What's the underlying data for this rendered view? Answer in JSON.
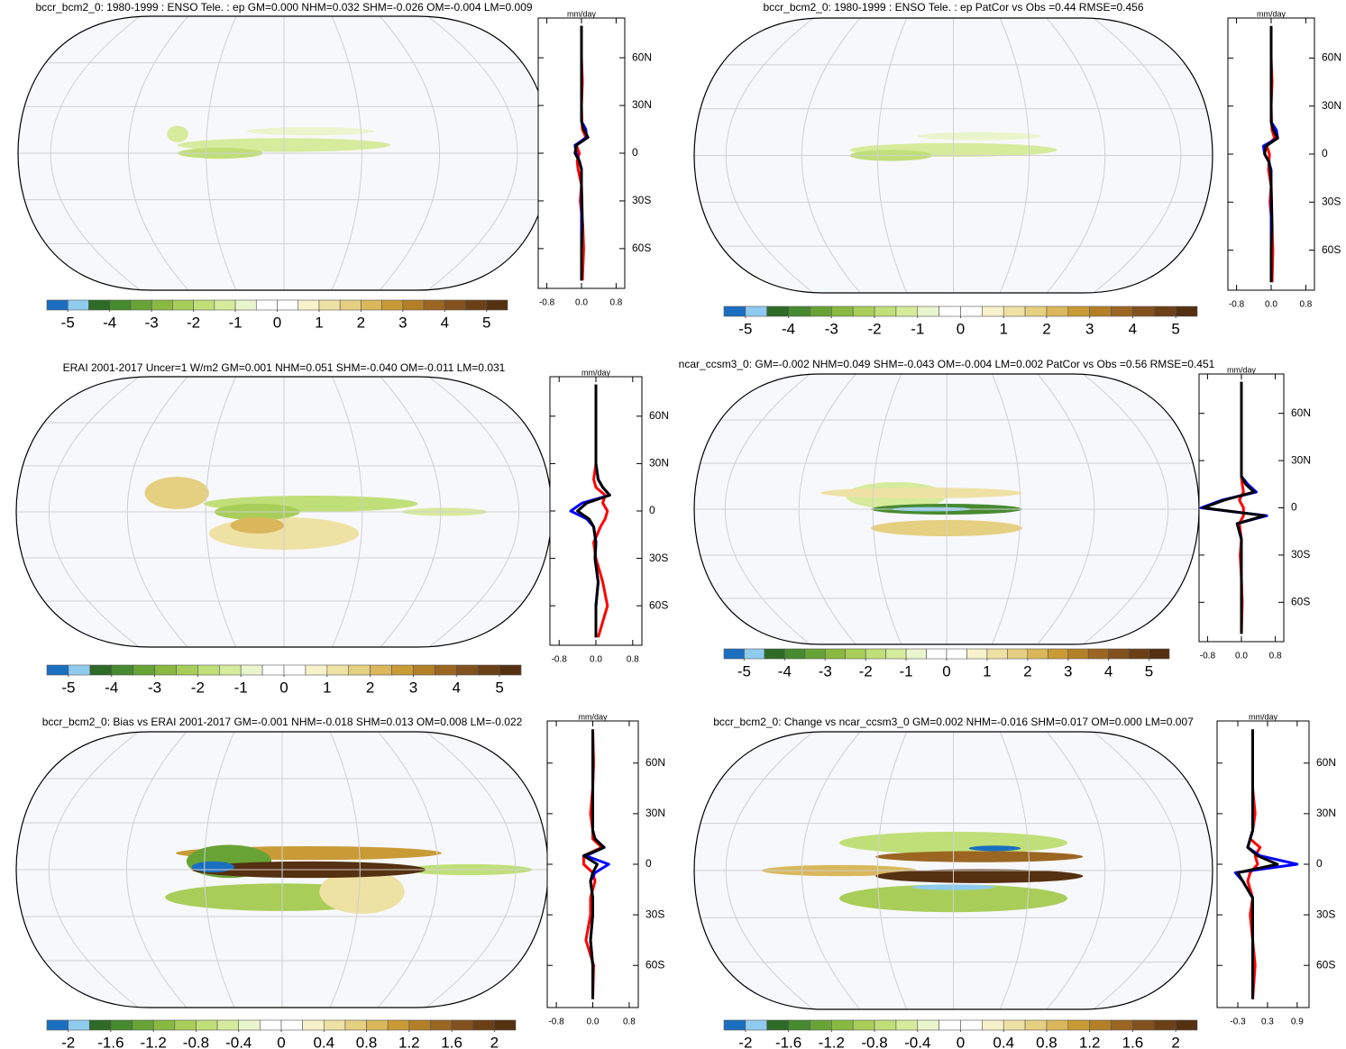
{
  "chart_data": [
    {
      "type": "map-panel",
      "title": "bccr_bcm2_0: 1980-1999 : ENSO Tele. : ep GM=0.000 NHM=0.032 SHM=-0.026 OM=-0.004 LM=0.009",
      "colorbar": {
        "colors": [
          "#1a6fc0",
          "#8fcbef",
          "#2d6b27",
          "#478a2f",
          "#68a336",
          "#8ab942",
          "#a8ce59",
          "#c0df78",
          "#d6eb9c",
          "#ebf5cd",
          "#ffffff",
          "#ffffff",
          "#f7f1cc",
          "#eee1a4",
          "#e5cf80",
          "#d9b75a",
          "#c99b37",
          "#b38028",
          "#9b6622",
          "#83511e",
          "#6c4017",
          "#553011"
        ],
        "lim": [
          -5.5,
          5.5
        ],
        "ticks": [
          -5,
          -4,
          -3,
          -2,
          -1,
          0,
          1,
          2,
          3,
          4,
          5
        ]
      },
      "profile": {
        "type": "line",
        "unit": "mm/day",
        "lat": [
          -80,
          -60,
          -45,
          -30,
          -20,
          -10,
          -5,
          0,
          5,
          10,
          15,
          20,
          30,
          45,
          60,
          80
        ],
        "latlim": [
          -85,
          85
        ],
        "latticks": [
          {
            "value": 60,
            "label": "60N"
          },
          {
            "value": 30,
            "label": "30N"
          },
          0,
          {
            "value": -30,
            "label": "30S"
          },
          {
            "value": -60,
            "label": "60S"
          }
        ],
        "vlim": [
          -1,
          1
        ],
        "vticks": [
          -0.8,
          {
            "value": 0,
            "label": "0.0"
          },
          0.8
        ],
        "series": [
          {
            "color": "#ff0000",
            "values": [
              0.02,
              0.05,
              0.03,
              -0.03,
              0,
              -0.08,
              -0.1,
              -0.05,
              -0.12,
              0.1,
              0.02,
              0.01,
              0,
              0.02,
              0,
              0
            ]
          },
          {
            "color": "#0000ff",
            "values": [
              0,
              0,
              0,
              0,
              0,
              0,
              -0.05,
              -0.12,
              -0.15,
              0.12,
              0.1,
              0,
              0,
              0,
              0,
              0
            ]
          },
          {
            "color": "#000000",
            "values": [
              0,
              0,
              0.02,
              0.01,
              0,
              0,
              -0.05,
              -0.15,
              -0.12,
              0.15,
              0.05,
              0,
              0,
              0,
              0,
              0
            ]
          }
        ]
      }
    },
    {
      "type": "map-panel",
      "title": "bccr_bcm2_0: 1980-1999 : ENSO Tele. : ep PatCor vs Obs =0.44 RMSE=0.456",
      "colorbar": {
        "colors": [
          "#1a6fc0",
          "#8fcbef",
          "#2d6b27",
          "#478a2f",
          "#68a336",
          "#8ab942",
          "#a8ce59",
          "#c0df78",
          "#d6eb9c",
          "#ebf5cd",
          "#ffffff",
          "#ffffff",
          "#f7f1cc",
          "#eee1a4",
          "#e5cf80",
          "#d9b75a",
          "#c99b37",
          "#b38028",
          "#9b6622",
          "#83511e",
          "#6c4017",
          "#553011"
        ],
        "lim": [
          -5.5,
          5.5
        ],
        "ticks": [
          -5,
          -4,
          -3,
          -2,
          -1,
          0,
          1,
          2,
          3,
          4,
          5
        ]
      },
      "profile": {
        "type": "line",
        "unit": "mm/day",
        "lat": [
          -80,
          -60,
          -45,
          -30,
          -20,
          -10,
          -5,
          0,
          5,
          10,
          15,
          20,
          30,
          45,
          60,
          80
        ],
        "latlim": [
          -85,
          85
        ],
        "latticks": [
          {
            "value": 60,
            "label": "60N"
          },
          {
            "value": 30,
            "label": "30N"
          },
          0,
          {
            "value": -30,
            "label": "30S"
          },
          {
            "value": -60,
            "label": "60S"
          }
        ],
        "vlim": [
          -1,
          1
        ],
        "vticks": [
          -0.8,
          {
            "value": 0,
            "label": "0.0"
          },
          0.8
        ],
        "series": [
          {
            "color": "#ff0000",
            "values": [
              0.02,
              0.04,
              0.02,
              -0.03,
              0,
              -0.06,
              -0.05,
              -0.04,
              -0.1,
              0.08,
              0.02,
              0.01,
              0,
              0.02,
              0,
              0
            ]
          },
          {
            "color": "#0000ff",
            "values": [
              0,
              0,
              0,
              0,
              0,
              0,
              -0.05,
              -0.15,
              -0.18,
              0.15,
              0.12,
              0,
              0,
              0,
              0,
              0
            ]
          },
          {
            "color": "#000000",
            "values": [
              0,
              0,
              0.02,
              0.01,
              0,
              -0.02,
              -0.05,
              -0.15,
              -0.12,
              0.15,
              0.05,
              0,
              0,
              0,
              0,
              0
            ]
          }
        ]
      }
    },
    {
      "type": "map-panel",
      "title": "ERAI 2001-2017 Uncer=1 W/m2 GM=0.001 NHM=0.051 SHM=-0.040 OM=-0.011 LM=0.031",
      "colorbar": {
        "colors": [
          "#1a6fc0",
          "#8fcbef",
          "#2d6b27",
          "#478a2f",
          "#68a336",
          "#8ab942",
          "#a8ce59",
          "#c0df78",
          "#d6eb9c",
          "#ebf5cd",
          "#ffffff",
          "#ffffff",
          "#f7f1cc",
          "#eee1a4",
          "#e5cf80",
          "#d9b75a",
          "#c99b37",
          "#b38028",
          "#9b6622",
          "#83511e",
          "#6c4017",
          "#553011"
        ],
        "lim": [
          -5.5,
          5.5
        ],
        "ticks": [
          -5,
          -4,
          -3,
          -2,
          -1,
          0,
          1,
          2,
          3,
          4,
          5
        ]
      },
      "profile": {
        "type": "line",
        "unit": "mm/day",
        "lat": [
          -80,
          -60,
          -45,
          -30,
          -20,
          -10,
          -5,
          0,
          5,
          10,
          15,
          20,
          30,
          45,
          60,
          80
        ],
        "latlim": [
          -85,
          85
        ],
        "latticks": [
          {
            "value": 60,
            "label": "60N"
          },
          {
            "value": 30,
            "label": "30N"
          },
          0,
          {
            "value": -30,
            "label": "30S"
          },
          {
            "value": -60,
            "label": "60S"
          }
        ],
        "vlim": [
          -1,
          1
        ],
        "vticks": [
          -0.8,
          {
            "value": 0,
            "label": "0.0"
          },
          0.8
        ],
        "series": [
          {
            "color": "#ff0000",
            "values": [
              0.05,
              0.25,
              0.15,
              0,
              -0.05,
              0.1,
              0.2,
              0.25,
              0.15,
              0.2,
              0,
              -0.05,
              0,
              0,
              0,
              0
            ]
          },
          {
            "color": "#0000ff",
            "values": [
              0,
              0,
              0.05,
              -0.02,
              0,
              -0.05,
              -0.2,
              -0.55,
              -0.3,
              0.3,
              0.15,
              0.05,
              0,
              0,
              0,
              0
            ]
          },
          {
            "color": "#000000",
            "values": [
              0,
              0,
              0.05,
              -0.02,
              0,
              -0.05,
              -0.15,
              -0.4,
              -0.2,
              0.3,
              0.15,
              0.05,
              0,
              0,
              0,
              0
            ]
          }
        ]
      }
    },
    {
      "type": "map-panel",
      "title": "ncar_ccsm3_0: GM=-0.002 NHM=0.049 SHM=-0.043 OM=-0.004 LM=0.002 PatCor vs Obs =0.56 RMSE=0.451",
      "colorbar": {
        "colors": [
          "#1a6fc0",
          "#8fcbef",
          "#2d6b27",
          "#478a2f",
          "#68a336",
          "#8ab942",
          "#a8ce59",
          "#c0df78",
          "#d6eb9c",
          "#ebf5cd",
          "#ffffff",
          "#ffffff",
          "#f7f1cc",
          "#eee1a4",
          "#e5cf80",
          "#d9b75a",
          "#c99b37",
          "#b38028",
          "#9b6622",
          "#83511e",
          "#6c4017",
          "#553011"
        ],
        "lim": [
          -5.5,
          5.5
        ],
        "ticks": [
          -5,
          -4,
          -3,
          -2,
          -1,
          0,
          1,
          2,
          3,
          4,
          5
        ]
      },
      "profile": {
        "type": "line",
        "unit": "mm/day",
        "lat": [
          -80,
          -60,
          -45,
          -30,
          -20,
          -10,
          -5,
          0,
          5,
          10,
          15,
          20,
          30,
          45,
          60,
          80
        ],
        "latlim": [
          -85,
          85
        ],
        "latticks": [
          {
            "value": 60,
            "label": "60N"
          },
          {
            "value": 30,
            "label": "30N"
          },
          0,
          {
            "value": -30,
            "label": "30S"
          },
          {
            "value": -60,
            "label": "60S"
          }
        ],
        "vlim": [
          -1,
          1
        ],
        "vticks": [
          -0.8,
          {
            "value": 0,
            "label": "0.0"
          },
          0.8
        ],
        "series": [
          {
            "color": "#ff0000",
            "values": [
              0,
              0.02,
              0,
              -0.03,
              0,
              -0.05,
              0.05,
              0.05,
              -0.05,
              0.05,
              0.02,
              0,
              0,
              0,
              0,
              0
            ]
          },
          {
            "color": "#0000ff",
            "values": [
              0,
              0,
              0,
              0,
              0,
              -0.1,
              0.6,
              -0.95,
              -0.45,
              0.35,
              0.15,
              0,
              0,
              0,
              0,
              0
            ]
          },
          {
            "color": "#000000",
            "values": [
              0,
              0,
              0,
              0,
              0,
              -0.1,
              0.55,
              -0.9,
              -0.4,
              0.3,
              0.1,
              0,
              0,
              0,
              0,
              0
            ]
          }
        ]
      }
    },
    {
      "type": "map-panel",
      "title": "bccr_bcm2_0: Bias vs ERAI 2001-2017 GM=-0.001 NHM=-0.018 SHM=0.013 OM=0.008 LM=-0.022",
      "colorbar": {
        "colors": [
          "#1a6fc0",
          "#8fcbef",
          "#2d6b27",
          "#478a2f",
          "#68a336",
          "#8ab942",
          "#a8ce59",
          "#c0df78",
          "#d6eb9c",
          "#ebf5cd",
          "#ffffff",
          "#ffffff",
          "#f7f1cc",
          "#eee1a4",
          "#e5cf80",
          "#d9b75a",
          "#c99b37",
          "#b38028",
          "#9b6622",
          "#83511e",
          "#6c4017",
          "#553011"
        ],
        "lim": [
          -2.2,
          2.2
        ],
        "ticks": [
          -2,
          -1.6,
          -1.2,
          -0.8,
          -0.4,
          0,
          0.4,
          0.8,
          1.2,
          1.6,
          2
        ]
      },
      "profile": {
        "type": "line",
        "unit": "mm/day",
        "lat": [
          -80,
          -60,
          -45,
          -30,
          -20,
          -10,
          -5,
          0,
          5,
          10,
          15,
          20,
          30,
          45,
          60,
          80
        ],
        "latlim": [
          -85,
          85
        ],
        "latticks": [
          {
            "value": 60,
            "label": "60N"
          },
          {
            "value": 30,
            "label": "30N"
          },
          0,
          {
            "value": -30,
            "label": "30S"
          },
          {
            "value": -60,
            "label": "60S"
          }
        ],
        "vlim": [
          -1,
          1
        ],
        "vticks": [
          -0.8,
          {
            "value": 0,
            "label": "0.0"
          },
          0.8
        ],
        "series": [
          {
            "color": "#ff0000",
            "values": [
              0,
              0.02,
              -0.15,
              -0.05,
              -0.05,
              0.05,
              0,
              -0.2,
              -0.2,
              0.2,
              0,
              0,
              -0.05,
              0,
              0.02,
              0
            ]
          },
          {
            "color": "#0000ff",
            "values": [
              0,
              0,
              -0.05,
              0,
              0,
              -0.05,
              0.05,
              0.35,
              -0.15,
              0.25,
              0.05,
              0,
              0,
              0,
              0,
              0
            ]
          },
          {
            "color": "#000000",
            "values": [
              0,
              0,
              -0.05,
              0,
              0,
              -0.05,
              0,
              0.1,
              -0.2,
              0.25,
              0.05,
              0,
              0,
              0,
              0,
              0
            ]
          }
        ]
      }
    },
    {
      "type": "map-panel",
      "title": "bccr_bcm2_0: Change vs ncar_ccsm3_0 GM=0.002 NHM=-0.016 SHM=0.017 OM=0.000 LM=0.007",
      "colorbar": {
        "colors": [
          "#1a6fc0",
          "#8fcbef",
          "#2d6b27",
          "#478a2f",
          "#68a336",
          "#8ab942",
          "#a8ce59",
          "#c0df78",
          "#d6eb9c",
          "#ebf5cd",
          "#ffffff",
          "#ffffff",
          "#f7f1cc",
          "#eee1a4",
          "#e5cf80",
          "#d9b75a",
          "#c99b37",
          "#b38028",
          "#9b6622",
          "#83511e",
          "#6c4017",
          "#553011"
        ],
        "lim": [
          -2.2,
          2.2
        ],
        "ticks": [
          -2,
          -1.6,
          -1.2,
          -0.8,
          -0.4,
          0,
          0.4,
          0.8,
          1.2,
          1.6,
          2
        ]
      },
      "profile": {
        "type": "line",
        "unit": "mm/day",
        "lat": [
          -80,
          -60,
          -45,
          -30,
          -20,
          -10,
          -5,
          0,
          5,
          10,
          15,
          20,
          30,
          45,
          60,
          80
        ],
        "latlim": [
          -85,
          85
        ],
        "latticks": [
          {
            "value": 60,
            "label": "60N"
          },
          {
            "value": 30,
            "label": "30N"
          },
          0,
          {
            "value": -30,
            "label": "30S"
          },
          {
            "value": -60,
            "label": "60S"
          }
        ],
        "vlim": [
          -0.72,
          1.14
        ],
        "vticks": [
          -0.3,
          0.3,
          0.9
        ],
        "series": [
          {
            "color": "#ff0000",
            "values": [
              0,
              0.05,
              0,
              -0.05,
              0,
              -0.1,
              -0.05,
              0.1,
              0.05,
              0.15,
              -0.05,
              0,
              0.05,
              0,
              0,
              0
            ]
          },
          {
            "color": "#0000ff",
            "values": [
              0,
              0,
              0,
              0,
              0,
              -0.2,
              -0.35,
              0.9,
              0.15,
              -0.1,
              -0.05,
              0,
              0,
              0,
              0,
              0
            ]
          },
          {
            "color": "#000000",
            "values": [
              0,
              0,
              0,
              0,
              0,
              -0.2,
              -0.3,
              0.5,
              0.1,
              -0.1,
              -0.05,
              0,
              0,
              0,
              0,
              0
            ]
          }
        ]
      }
    }
  ]
}
